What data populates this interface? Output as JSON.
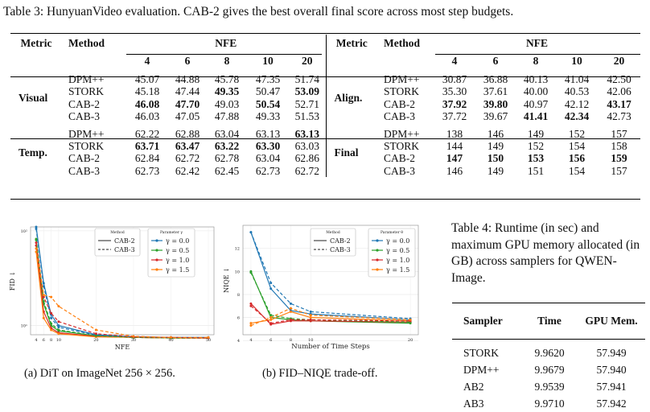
{
  "table3": {
    "caption": "Table 3: HunyuanVideo evaluation. CAB-2 gives the best overall final score across most step budgets.",
    "metric_header": "Metric",
    "method_header": "Method",
    "nfe_header": "NFE",
    "nfe_values": [
      "4",
      "6",
      "8",
      "10",
      "20"
    ],
    "left": [
      {
        "metric": "Visual",
        "rows": [
          {
            "method": "DPM++",
            "vals": [
              "45.07",
              "44.88",
              "45.78",
              "47.35",
              "51.74"
            ],
            "bold": []
          },
          {
            "method": "STORK",
            "vals": [
              "45.18",
              "47.44",
              "49.35",
              "50.47",
              "53.09"
            ],
            "bold": [
              2,
              4
            ]
          },
          {
            "method": "CAB-2",
            "vals": [
              "46.08",
              "47.70",
              "49.03",
              "50.54",
              "52.71"
            ],
            "bold": [
              0,
              1,
              3
            ]
          },
          {
            "method": "CAB-3",
            "vals": [
              "46.03",
              "47.05",
              "47.88",
              "49.33",
              "51.53"
            ],
            "bold": []
          }
        ]
      },
      {
        "metric": "Temp.",
        "rows": [
          {
            "method": "DPM++",
            "vals": [
              "62.22",
              "62.88",
              "63.04",
              "63.13",
              "63.13"
            ],
            "bold": [
              4
            ]
          },
          {
            "method": "STORK",
            "vals": [
              "63.71",
              "63.47",
              "63.22",
              "63.30",
              "63.03"
            ],
            "bold": [
              0,
              1,
              2,
              3
            ]
          },
          {
            "method": "CAB-2",
            "vals": [
              "62.84",
              "62.72",
              "62.78",
              "63.04",
              "62.86"
            ],
            "bold": []
          },
          {
            "method": "CAB-3",
            "vals": [
              "62.73",
              "62.42",
              "62.45",
              "62.73",
              "62.72"
            ],
            "bold": []
          }
        ]
      }
    ],
    "right": [
      {
        "metric": "Align.",
        "rows": [
          {
            "method": "DPM++",
            "vals": [
              "30.87",
              "36.88",
              "40.13",
              "41.04",
              "42.50"
            ],
            "bold": []
          },
          {
            "method": "STORK",
            "vals": [
              "35.30",
              "37.61",
              "40.00",
              "40.53",
              "42.06"
            ],
            "bold": []
          },
          {
            "method": "CAB-2",
            "vals": [
              "37.92",
              "39.80",
              "40.97",
              "42.12",
              "43.17"
            ],
            "bold": [
              0,
              1,
              4
            ]
          },
          {
            "method": "CAB-3",
            "vals": [
              "37.72",
              "39.67",
              "41.41",
              "42.34",
              "42.73"
            ],
            "bold": [
              2,
              3
            ]
          }
        ]
      },
      {
        "metric": "Final",
        "rows": [
          {
            "method": "DPM++",
            "vals": [
              "138",
              "146",
              "149",
              "152",
              "157"
            ],
            "bold": []
          },
          {
            "method": "STORK",
            "vals": [
              "144",
              "149",
              "152",
              "154",
              "158"
            ],
            "bold": []
          },
          {
            "method": "CAB-2",
            "vals": [
              "147",
              "150",
              "153",
              "156",
              "159"
            ],
            "bold": [
              0,
              1,
              2,
              3,
              4
            ]
          },
          {
            "method": "CAB-3",
            "vals": [
              "146",
              "149",
              "151",
              "154",
              "157"
            ],
            "bold": []
          }
        ]
      }
    ]
  },
  "figure_a_caption": "(a) DiT on ImageNet 256 × 256.",
  "figure_b_caption": "(b) FID–NIQE trade-off.",
  "table4": {
    "caption": "Table 4: Runtime (in sec) and maximum GPU memory allocated (in GB) across samplers for QWEN-Image.",
    "headers": [
      "Sampler",
      "Time",
      "GPU Mem."
    ],
    "rows": [
      [
        "STORK",
        "9.9620",
        "57.949"
      ],
      [
        "DPM++",
        "9.9679",
        "57.940"
      ],
      [
        "AB2",
        "9.9539",
        "57.941"
      ],
      [
        "AB3",
        "9.9710",
        "57.942"
      ]
    ]
  },
  "chart_data": [
    {
      "type": "line",
      "xlabel": "NFE",
      "ylabel": "FID ↓",
      "yscale": "log",
      "ylim": [
        8,
        110
      ],
      "yticks": [
        "10¹",
        "10²"
      ],
      "xticks": [
        "4",
        "6",
        "8",
        "10",
        "20",
        "30",
        "40",
        "50"
      ],
      "x": [
        4,
        6,
        8,
        10,
        20,
        30,
        40,
        50
      ],
      "legend_method": {
        "title": "Method",
        "entries": [
          {
            "label": "CAB-2",
            "style": "solid"
          },
          {
            "label": "CAB-3",
            "style": "dashed"
          }
        ]
      },
      "legend_param": {
        "title": "Parameter γ",
        "entries": [
          "γ = 0.0",
          "γ = 0.5",
          "γ = 1.0",
          "γ = 1.5"
        ]
      },
      "colors": [
        "#1f77b4",
        "#2ca02c",
        "#d62728",
        "#ff7f0e"
      ],
      "series": [
        {
          "name": "CAB-2 γ = 0.0",
          "style": "solid",
          "color": "#1f77b4",
          "values": [
            110,
            28,
            13,
            10,
            8.0,
            7.6,
            7.5,
            7.5
          ]
        },
        {
          "name": "CAB-2 γ = 0.5",
          "style": "solid",
          "color": "#2ca02c",
          "values": [
            80,
            17,
            10,
            8.8,
            7.8,
            7.5,
            7.4,
            7.4
          ]
        },
        {
          "name": "CAB-2 γ = 1.0",
          "style": "solid",
          "color": "#d62728",
          "values": [
            70,
            14,
            9.4,
            8.4,
            7.7,
            7.5,
            7.4,
            7.4
          ]
        },
        {
          "name": "CAB-2 γ = 1.5",
          "style": "solid",
          "color": "#ff7f0e",
          "values": [
            60,
            12,
            9.0,
            8.2,
            7.6,
            7.5,
            7.4,
            7.4
          ]
        },
        {
          "name": "CAB-3 γ = 0.0",
          "style": "dashed",
          "color": "#1f77b4",
          "values": [
            105,
            26,
            12,
            9.6,
            7.9,
            7.6,
            7.5,
            7.5
          ]
        },
        {
          "name": "CAB-3 γ = 0.5",
          "style": "dashed",
          "color": "#2ca02c",
          "values": [
            82,
            18,
            10.5,
            9.0,
            7.8,
            7.5,
            7.4,
            7.4
          ]
        },
        {
          "name": "CAB-3 γ = 1.0",
          "style": "dashed",
          "color": "#d62728",
          "values": [
            75,
            20,
            13.5,
            11,
            8.2,
            7.6,
            7.5,
            7.4
          ]
        },
        {
          "name": "CAB-3 γ = 1.5",
          "style": "dashed",
          "color": "#ff7f0e",
          "values": [
            65,
            21,
            20,
            16,
            9.0,
            7.7,
            7.5,
            7.5
          ]
        }
      ]
    },
    {
      "type": "line",
      "xlabel": "Number of Time Steps",
      "ylabel": "NIQE ↓",
      "ylim": [
        4.5,
        14
      ],
      "yticks": [
        "4",
        "6",
        "8",
        "10",
        "12"
      ],
      "xticks": [
        "4",
        "6",
        "8",
        "10",
        "20"
      ],
      "x": [
        4,
        6,
        8,
        10,
        20
      ],
      "legend_method": {
        "title": "Method",
        "entries": [
          {
            "label": "CAB-2",
            "style": "solid"
          },
          {
            "label": "CAB-3",
            "style": "dashed"
          }
        ]
      },
      "legend_param": {
        "title": "Parameter θ",
        "entries": [
          "γ = 0.0",
          "γ = 0.5",
          "γ = 1.0",
          "γ = 1.5"
        ]
      },
      "colors": [
        "#1f77b4",
        "#2ca02c",
        "#d62728",
        "#ff7f0e"
      ],
      "series": [
        {
          "name": "CAB-2 γ = 0.0",
          "style": "solid",
          "color": "#1f77b4",
          "values": [
            13.4,
            8.5,
            6.6,
            6.3,
            5.8
          ]
        },
        {
          "name": "CAB-2 γ = 0.5",
          "style": "solid",
          "color": "#2ca02c",
          "values": [
            10.0,
            6.0,
            5.8,
            5.7,
            5.5
          ]
        },
        {
          "name": "CAB-2 γ = 1.0",
          "style": "solid",
          "color": "#d62728",
          "values": [
            7.2,
            5.4,
            5.7,
            5.7,
            5.6
          ]
        },
        {
          "name": "CAB-2 γ = 1.5",
          "style": "solid",
          "color": "#ff7f0e",
          "values": [
            5.5,
            5.8,
            6.5,
            6.0,
            5.7
          ]
        },
        {
          "name": "CAB-3 γ = 0.0",
          "style": "dashed",
          "color": "#1f77b4",
          "values": [
            13.4,
            9.0,
            7.2,
            6.5,
            5.9
          ]
        },
        {
          "name": "CAB-3 γ = 0.5",
          "style": "dashed",
          "color": "#2ca02c",
          "values": [
            9.9,
            6.2,
            5.9,
            5.8,
            5.6
          ]
        },
        {
          "name": "CAB-3 γ = 1.0",
          "style": "dashed",
          "color": "#d62728",
          "values": [
            7.0,
            5.5,
            5.8,
            5.8,
            5.7
          ]
        },
        {
          "name": "CAB-3 γ = 1.5",
          "style": "dashed",
          "color": "#ff7f0e",
          "values": [
            5.3,
            6.0,
            6.8,
            6.2,
            5.8
          ]
        }
      ]
    }
  ]
}
